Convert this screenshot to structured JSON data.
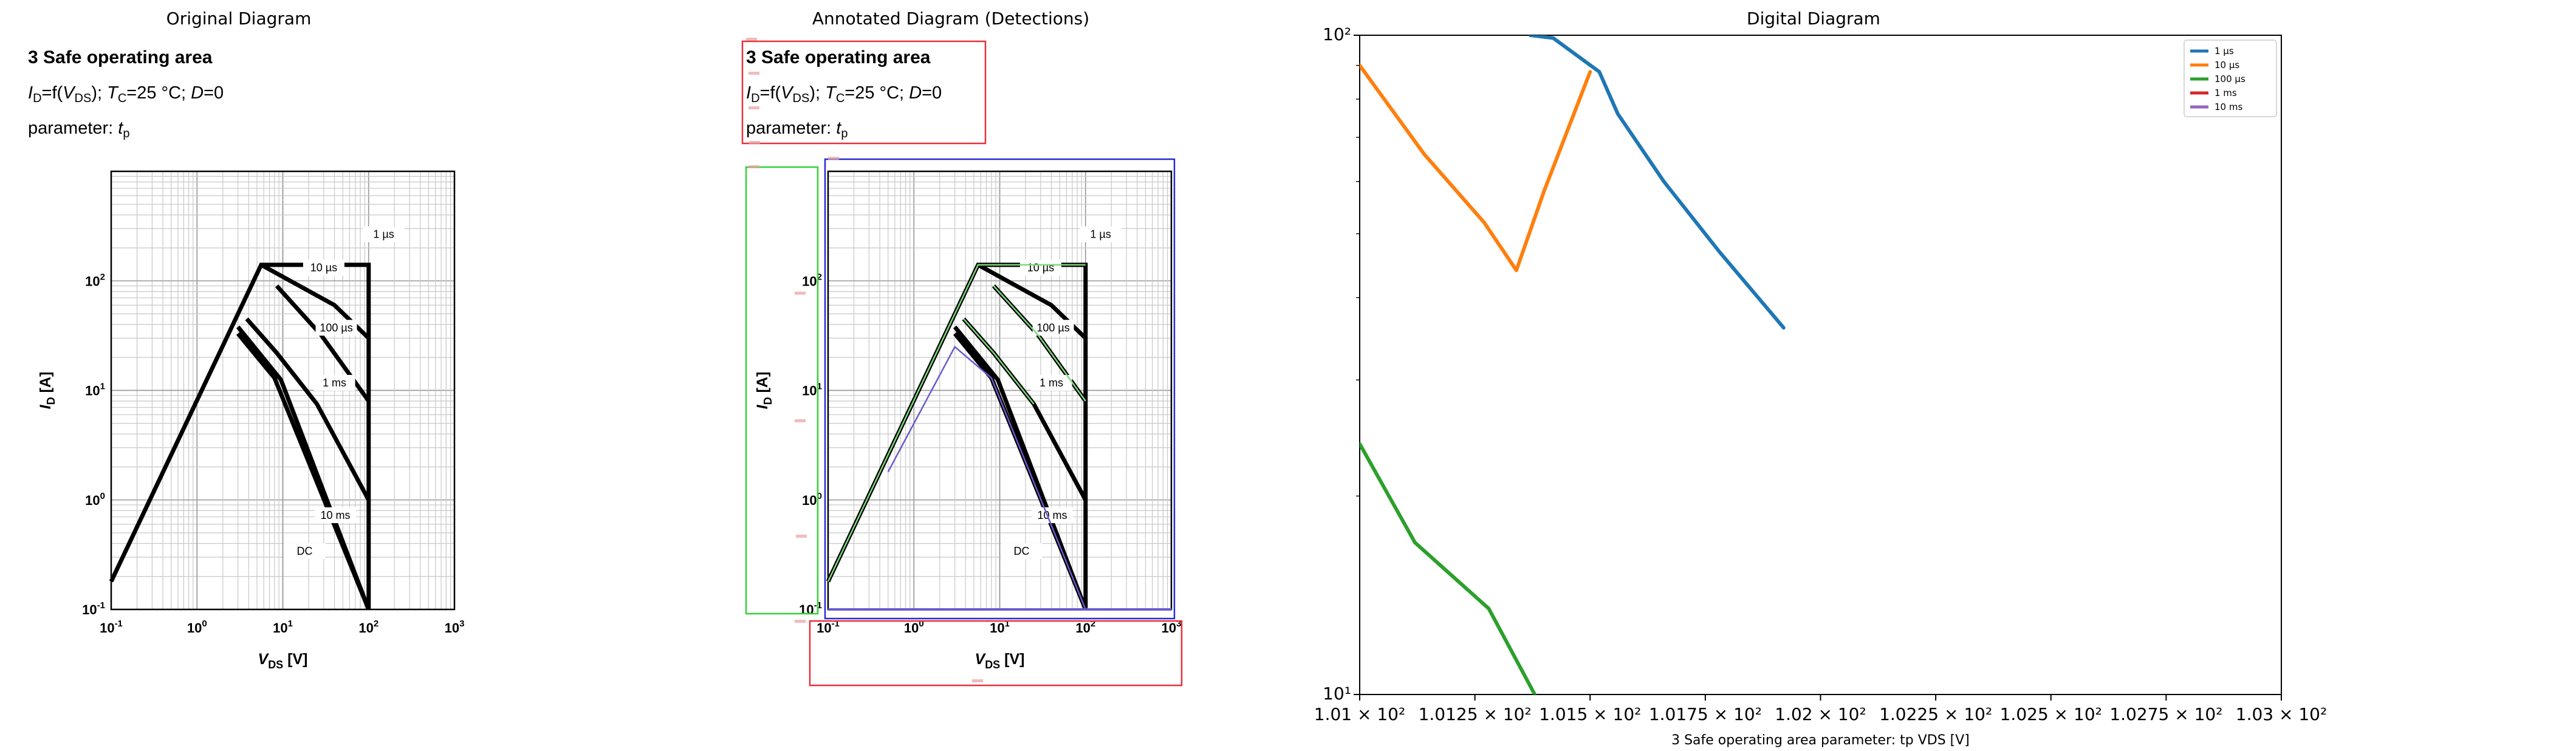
{
  "panels": {
    "original": {
      "title": "Original Diagram"
    },
    "annotated": {
      "title": "Annotated Diagram (Detections)"
    },
    "digital": {
      "title": "Digital Diagram"
    }
  },
  "datasheet": {
    "heading": "3 Safe operating area",
    "line2": {
      "i": "I",
      "d": "D",
      "mid": "=f(",
      "v": "V",
      "ds": "DS",
      "tc_pre": "); ",
      "t": "T",
      "c": "C",
      "tc_post": "=25 °C; ",
      "dvar": "D",
      "tail": "=0"
    },
    "line3": {
      "pre": "parameter: ",
      "t": "t",
      "p": "p"
    },
    "xticks": [
      {
        "base": "10",
        "exp": "-1"
      },
      {
        "base": "10",
        "exp": "0"
      },
      {
        "base": "10",
        "exp": "1"
      },
      {
        "base": "10",
        "exp": "2"
      },
      {
        "base": "10",
        "exp": "3"
      }
    ],
    "yticks": [
      {
        "base": "10",
        "exp": "-1"
      },
      {
        "base": "10",
        "exp": "0"
      },
      {
        "base": "10",
        "exp": "1"
      },
      {
        "base": "10",
        "exp": "2"
      }
    ],
    "xlabel": {
      "v": "V",
      "sub": "DS",
      "unit": " [V]"
    },
    "ylabel": {
      "i": "I",
      "sub": "D",
      "unit": " [A]"
    },
    "curve_labels": [
      "1 µs",
      "10 µs",
      "100 µs",
      "1 ms",
      "10 ms",
      "DC"
    ]
  },
  "colors": {
    "detect_red": "#e8303a",
    "detect_green": "#33d233",
    "detect_blue": "#2a2ad0",
    "overlay_green": "#7ed87e",
    "overlay_purple": "#6a5acd"
  },
  "chart_data": [
    {
      "type": "line",
      "panel": "original",
      "title": "3 Safe operating area",
      "xlabel": "VDS [V]",
      "ylabel": "ID [A]",
      "xscale": "log",
      "yscale": "log",
      "xlim": [
        0.1,
        1000
      ],
      "ylim": [
        0.1,
        1000
      ],
      "grid": true,
      "series": [
        {
          "name": "1 µs",
          "x": [
            0.1,
            5.6,
            100,
            100
          ],
          "y": [
            0.18,
            140,
            140,
            0.1
          ]
        },
        {
          "name": "10 µs",
          "x": [
            5.6,
            40,
            100
          ],
          "y": [
            140,
            60,
            30
          ]
        },
        {
          "name": "100 µs",
          "x": [
            8.5,
            28,
            100
          ],
          "y": [
            90,
            32,
            8
          ]
        },
        {
          "name": "1 ms",
          "x": [
            3.8,
            8.5,
            25,
            100
          ],
          "y": [
            45,
            22,
            7.5,
            1.0
          ]
        },
        {
          "name": "10 ms",
          "x": [
            3.0,
            9.5,
            100
          ],
          "y": [
            38,
            12.5,
            0.1
          ]
        },
        {
          "name": "DC",
          "x": [
            3.0,
            8.0,
            100
          ],
          "y": [
            33,
            13,
            0.1
          ]
        }
      ]
    },
    {
      "type": "line",
      "panel": "digital",
      "title": "Digital Diagram",
      "xlabel": "3 Safe operating area parameter: tp VDS [V]",
      "ylabel": "",
      "xscale": "linear",
      "yscale": "log",
      "xlim": [
        101.0,
        103.0
      ],
      "ylim": [
        10,
        100
      ],
      "xticklabels": [
        "1.01 × 10²",
        "1.0125 × 10²",
        "1.015 × 10²",
        "1.0175 × 10²",
        "1.02 × 10²",
        "1.0225 × 10²",
        "1.025 × 10²",
        "1.0275 × 10²",
        "1.03 × 10²"
      ],
      "yticklabels": [
        "10²",
        "10¹"
      ],
      "legend": "top-right",
      "grid": false,
      "series": [
        {
          "name": "1 µs",
          "color": "#1f77b4",
          "x": [
            101.37,
            101.42,
            101.52,
            101.56,
            101.66,
            101.78,
            101.92
          ],
          "y": [
            100,
            99,
            88,
            76,
            60,
            47,
            36
          ]
        },
        {
          "name": "10 µs",
          "color": "#ff7f0e",
          "x": [
            101.0,
            101.14,
            101.27,
            101.34,
            101.4,
            101.5
          ],
          "y": [
            90,
            66,
            52,
            44,
            58,
            88
          ]
        },
        {
          "name": "100 µs",
          "color": "#2ca02c",
          "x": [
            101.0,
            101.12,
            101.28,
            101.38
          ],
          "y": [
            24,
            17,
            13.5,
            10
          ]
        },
        {
          "name": "1 ms",
          "color": "#d62728",
          "x": [],
          "y": []
        },
        {
          "name": "10 ms",
          "color": "#9467bd",
          "x": [],
          "y": []
        }
      ]
    }
  ]
}
